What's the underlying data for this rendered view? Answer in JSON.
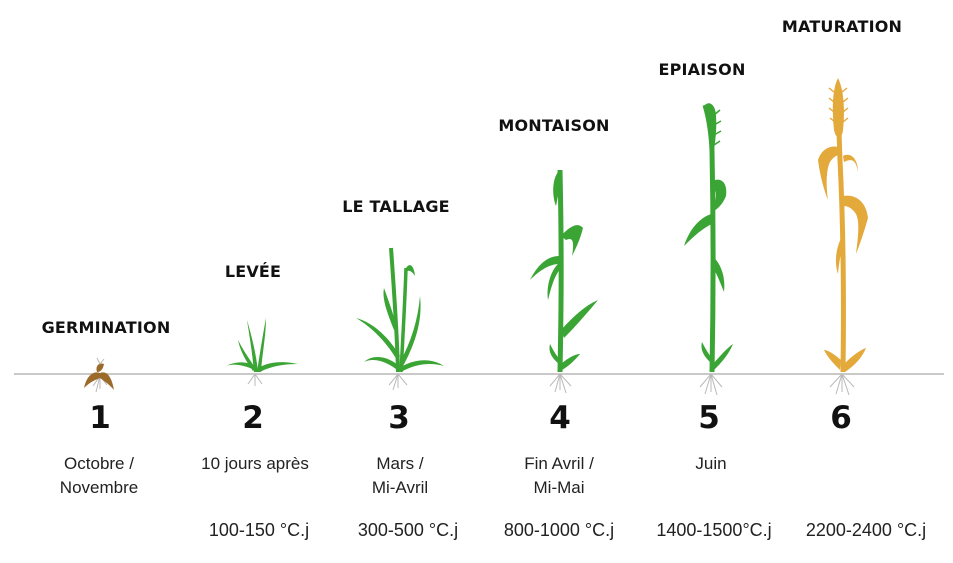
{
  "stages": [
    {
      "number": "1",
      "title": "GERMINATION",
      "period": [
        "Octobre /",
        "Novembre"
      ],
      "degree_days": ""
    },
    {
      "number": "2",
      "title": "LEVÉE",
      "period": [
        "10 jours après"
      ],
      "degree_days": "100-150 °C.j"
    },
    {
      "number": "3",
      "title": "LE TALLAGE",
      "period": [
        "Mars /",
        "Mi-Avril"
      ],
      "degree_days": "300-500 °C.j"
    },
    {
      "number": "4",
      "title": "MONTAISON",
      "period": [
        "Fin Avril /",
        "Mi-Mai"
      ],
      "degree_days": "800-1000 °C.j"
    },
    {
      "number": "5",
      "title": "EPIAISON",
      "period": [
        "Juin"
      ],
      "degree_days": "1400-1500°C.j"
    },
    {
      "number": "6",
      "title": "MATURATION",
      "period": [],
      "degree_days": "2200-2400 °C.j"
    }
  ],
  "colors": {
    "green": "#3aa534",
    "seed": "#9c6b2a",
    "mature": "#e4a93b",
    "ground": "#c9c9c9",
    "roots": "#b9b9b9"
  }
}
